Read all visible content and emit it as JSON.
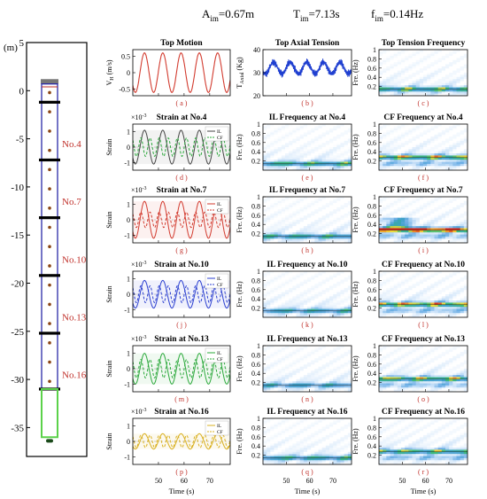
{
  "header": {
    "a_label": "A",
    "a_sub": "im",
    "a_value": "=0.67m",
    "t_label": "T",
    "t_sub": "im",
    "t_value": "=7.13s",
    "f_label": "f",
    "f_sub": "im",
    "f_value": "=0.14Hz"
  },
  "colors": {
    "motion": "#d23a2e",
    "tension": "#1f3fd0",
    "riser": "#2a2aa8",
    "node": "#8b4513",
    "bottom": "#5bd24a",
    "label_red": "#c0302a",
    "strain4": "#555555",
    "strain7": "#d23a2e",
    "strain10": "#2b3fd0",
    "strain13": "#2aa83a",
    "strain16": "#d9b020"
  },
  "riser_panel": {
    "unit": "(m)",
    "y_ticks": [
      "5",
      "0",
      "-5",
      "-10",
      "-15",
      "-20",
      "-25",
      "-30",
      "-35"
    ],
    "node_labels": [
      "No.4",
      "No.7",
      "No.10",
      "No.13",
      "No.16"
    ]
  },
  "x_axis": {
    "label": "Time (s)",
    "ticks": [
      "50",
      "60",
      "70"
    ]
  },
  "chart_data": [
    {
      "id": "a",
      "type": "line",
      "title": "Top Motion",
      "ylabel": "V_H (m/s)",
      "yticks": [
        "-0.5",
        "0",
        "0.5"
      ],
      "ylim": [
        -0.7,
        0.7
      ],
      "xlim": [
        40,
        78
      ],
      "period": 7.13,
      "series": [
        {
          "amplitude": 0.6,
          "offset": 0,
          "color": "#d23a2e"
        }
      ],
      "caption": "( a )"
    },
    {
      "id": "b",
      "type": "line",
      "title": "Top Axial Tension",
      "ylabel": "T_Axial (Kg)",
      "yticks": [
        "20",
        "30",
        "40"
      ],
      "ylim": [
        20,
        40
      ],
      "xlim": [
        40,
        78
      ],
      "period": 7.13,
      "series": [
        {
          "amplitude": 2.5,
          "offset": 32,
          "color": "#1f3fd0",
          "noise": true
        }
      ],
      "caption": "( b )"
    },
    {
      "id": "c",
      "type": "heatmap",
      "title": "Top Tension Frequency",
      "ylabel": "Fre. (Hz)",
      "yticks": [
        "0.2",
        "0.4",
        "0.6",
        "0.8",
        "1"
      ],
      "band": 0.14,
      "intensity": 0.6,
      "caption": "( c )"
    },
    {
      "id": "d",
      "type": "line",
      "title": "Strain at No.4",
      "scale": "×10^-3",
      "ylabel": "Strain",
      "yticks": [
        "-1",
        "0",
        "1"
      ],
      "ylim": [
        -1.5,
        1.5
      ],
      "legend": [
        "IL",
        "CF"
      ],
      "series": [
        {
          "amplitude": 1.1,
          "period": 7.13,
          "color": "#444444",
          "dash": false
        },
        {
          "amplitude": 0.6,
          "period": 3.56,
          "color": "#2aa83a",
          "dash": true
        }
      ],
      "caption": "( d )"
    },
    {
      "id": "e",
      "type": "heatmap",
      "title": "IL Frequency at No.4",
      "ylabel": "Fre. (Hz)",
      "yticks": [
        "0.2",
        "0.4",
        "0.6",
        "0.8",
        "1"
      ],
      "band": 0.14,
      "intensity": 0.55,
      "caption": "( e )"
    },
    {
      "id": "f",
      "type": "heatmap",
      "title": "CF Frequency at No.4",
      "ylabel": "Fre. (Hz)",
      "yticks": [
        "0.2",
        "0.4",
        "0.6",
        "0.8",
        "1"
      ],
      "band": 0.28,
      "intensity": 0.7,
      "caption": "( f )"
    },
    {
      "id": "g",
      "type": "line",
      "title": "Strain at No.7",
      "scale": "×10^-3",
      "ylabel": "Strain",
      "yticks": [
        "-1",
        "0",
        "1"
      ],
      "ylim": [
        -1.5,
        1.5
      ],
      "legend": [
        "IL",
        "CF"
      ],
      "series": [
        {
          "amplitude": 1.2,
          "period": 7.13,
          "color": "#d23a2e",
          "dash": false
        },
        {
          "amplitude": 0.5,
          "period": 3.56,
          "color": "#d23a2e",
          "dash": true
        }
      ],
      "caption": "( g )"
    },
    {
      "id": "h",
      "type": "heatmap",
      "title": "IL Frequency at No.7",
      "ylabel": "Fre. (Hz)",
      "yticks": [
        "0.2",
        "0.4",
        "0.6",
        "0.8",
        "1"
      ],
      "band": 0.14,
      "intensity": 0.5,
      "caption": "( h )"
    },
    {
      "id": "i",
      "type": "heatmap",
      "title": "CF Frequency at No.7",
      "ylabel": "Fre. (Hz)",
      "yticks": [
        "0.2",
        "0.4",
        "0.6",
        "0.8",
        "1"
      ],
      "band": 0.28,
      "intensity": 0.95,
      "caption": "( i )"
    },
    {
      "id": "j",
      "type": "line",
      "title": "Strain at No.10",
      "scale": "×10^-3",
      "ylabel": "Strain",
      "yticks": [
        "-1",
        "0",
        "1"
      ],
      "ylim": [
        -1.5,
        1.5
      ],
      "legend": [
        "IL",
        "CF"
      ],
      "series": [
        {
          "amplitude": 0.9,
          "period": 7.13,
          "color": "#2b3fd0",
          "dash": false
        },
        {
          "amplitude": 0.55,
          "period": 3.56,
          "color": "#2b3fd0",
          "dash": true
        }
      ],
      "caption": "( j )"
    },
    {
      "id": "k",
      "type": "heatmap",
      "title": "IL Frequency at No.10",
      "ylabel": "Fre. (Hz)",
      "yticks": [
        "0.2",
        "0.4",
        "0.6",
        "0.8",
        "1"
      ],
      "band": 0.14,
      "intensity": 0.45,
      "caption": "( k )"
    },
    {
      "id": "l",
      "type": "heatmap",
      "title": "CF Frequency at No.10",
      "ylabel": "Fre. (Hz)",
      "yticks": [
        "0.2",
        "0.4",
        "0.6",
        "0.8",
        "1"
      ],
      "band": 0.28,
      "intensity": 0.75,
      "caption": "( l )"
    },
    {
      "id": "m",
      "type": "line",
      "title": "Strain at No.13",
      "scale": "×10^-3",
      "ylabel": "Strain",
      "yticks": [
        "-1",
        "0",
        "1"
      ],
      "ylim": [
        -1.5,
        1.5
      ],
      "legend": [
        "IL",
        "CF"
      ],
      "series": [
        {
          "amplitude": 1.0,
          "period": 7.13,
          "color": "#2aa83a",
          "dash": false
        },
        {
          "amplitude": 0.6,
          "period": 3.56,
          "color": "#2aa83a",
          "dash": true
        }
      ],
      "caption": "( m )"
    },
    {
      "id": "n",
      "type": "heatmap",
      "title": "IL Frequency at No.13",
      "ylabel": "Fre. (Hz)",
      "yticks": [
        "0.2",
        "0.4",
        "0.6",
        "0.8",
        "1"
      ],
      "band": 0.14,
      "intensity": 0.4,
      "caption": "( n )"
    },
    {
      "id": "o",
      "type": "heatmap",
      "title": "CF Frequency at No.13",
      "ylabel": "Fre. (Hz)",
      "yticks": [
        "0.2",
        "0.4",
        "0.6",
        "0.8",
        "1"
      ],
      "band": 0.28,
      "intensity": 0.65,
      "caption": "( o )"
    },
    {
      "id": "p",
      "type": "line",
      "title": "Strain at No.16",
      "scale": "×10^-3",
      "ylabel": "Strain",
      "yticks": [
        "-1",
        "0",
        "1"
      ],
      "ylim": [
        -1.5,
        1.5
      ],
      "legend": [
        "IL",
        "CF"
      ],
      "series": [
        {
          "amplitude": 0.5,
          "period": 7.13,
          "color": "#d9b020",
          "dash": false
        },
        {
          "amplitude": 0.4,
          "period": 3.56,
          "color": "#d9b020",
          "dash": true
        }
      ],
      "caption": "( p )"
    },
    {
      "id": "q",
      "type": "heatmap",
      "title": "IL Frequency at No.16",
      "ylabel": "Fre. (Hz)",
      "yticks": [
        "0.2",
        "0.4",
        "0.6",
        "0.8",
        "1"
      ],
      "band": 0.14,
      "intensity": 0.5,
      "caption": "( q )"
    },
    {
      "id": "r",
      "type": "heatmap",
      "title": "CF Frequency at No.16",
      "ylabel": "Fre. (Hz)",
      "yticks": [
        "0.2",
        "0.4",
        "0.6",
        "0.8",
        "1"
      ],
      "band": 0.28,
      "intensity": 0.6,
      "caption": "( r )"
    }
  ]
}
